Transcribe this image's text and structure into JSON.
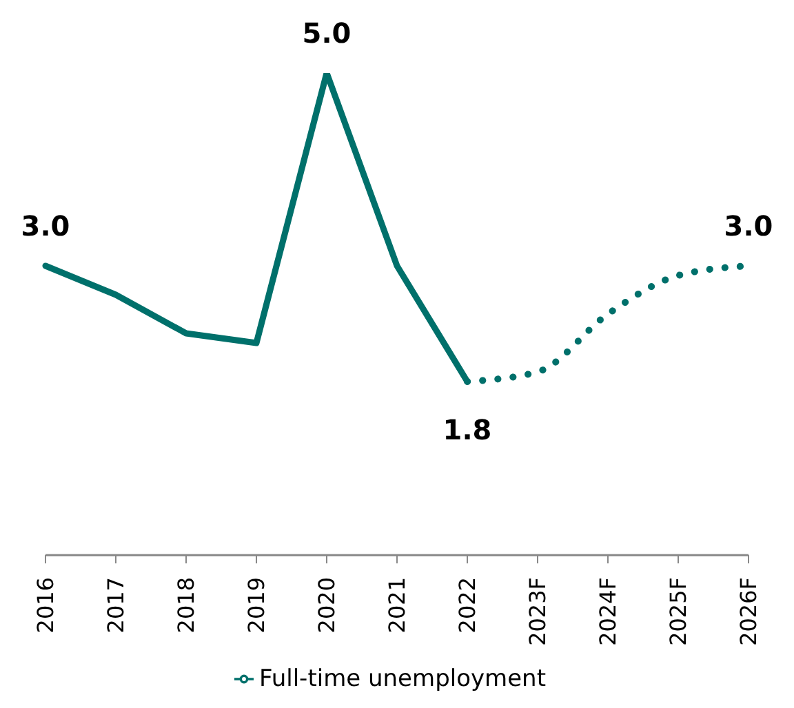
{
  "chart_data": {
    "type": "line",
    "categories": [
      "2016",
      "2017",
      "2018",
      "2019",
      "2020",
      "2021",
      "2022",
      "2023F",
      "2024F",
      "2025F",
      "2026F"
    ],
    "series": [
      {
        "name": "Full-time unemployment",
        "color": "#00706b",
        "line_style": "solid",
        "values": [
          3.0,
          2.7,
          2.3,
          2.2,
          5.0,
          3.0,
          1.8,
          null,
          null,
          null,
          null
        ],
        "value_labels": [
          "3.0",
          null,
          null,
          null,
          "5.0",
          null,
          null,
          null,
          null,
          null,
          null
        ]
      },
      {
        "color": "#00706b",
        "line_style": "dotted",
        "values": [
          null,
          null,
          null,
          null,
          null,
          null,
          1.8,
          1.9,
          2.5,
          2.9,
          3.0
        ],
        "value_labels": [
          null,
          null,
          null,
          null,
          null,
          null,
          "1.8",
          null,
          null,
          null,
          "3.0"
        ]
      }
    ],
    "tick_labels": "x",
    "legend": "bottom",
    "marker": "none"
  }
}
